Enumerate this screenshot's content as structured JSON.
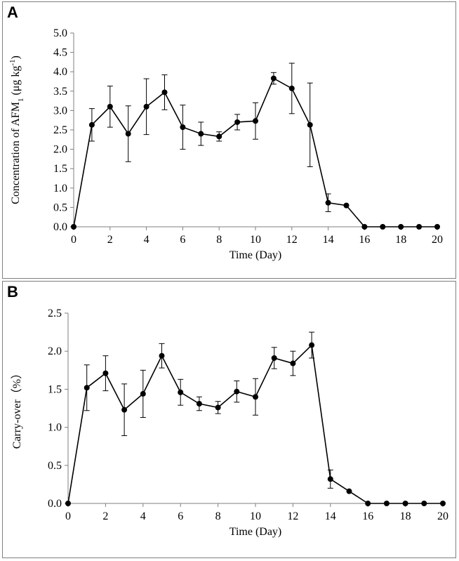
{
  "chart_data": [
    {
      "panel": "A",
      "type": "line",
      "xlabel": "Time (Day)",
      "ylabel": "Concentration of AFM",
      "ylabel_sub": "1",
      "ylabel_unit": " (μg kg",
      "ylabel_sup": "-1",
      "ylabel_close": ")",
      "xlim": [
        0,
        20
      ],
      "ylim": [
        0,
        5
      ],
      "xticks": [
        0,
        2,
        4,
        6,
        8,
        10,
        12,
        14,
        16,
        18,
        20
      ],
      "yticks": [
        0.0,
        0.5,
        1.0,
        1.5,
        2.0,
        2.5,
        3.0,
        3.5,
        4.0,
        4.5,
        5.0
      ],
      "ytick_labels": [
        "0.0",
        "0.5",
        "1.0",
        "1.5",
        "2.0",
        "2.5",
        "3.0",
        "3.5",
        "4.0",
        "4.5",
        "5.0"
      ],
      "x": [
        0,
        1,
        2,
        3,
        4,
        5,
        6,
        7,
        8,
        9,
        10,
        11,
        12,
        13,
        14,
        15,
        16,
        17,
        18,
        19,
        20
      ],
      "y": [
        0,
        2.63,
        3.1,
        2.4,
        3.1,
        3.47,
        2.57,
        2.4,
        2.33,
        2.7,
        2.73,
        3.83,
        3.57,
        2.63,
        0.62,
        0.55,
        0,
        0,
        0,
        0,
        0
      ],
      "err": [
        0,
        0.42,
        0.53,
        0.72,
        0.72,
        0.45,
        0.57,
        0.3,
        0.12,
        0.2,
        0.47,
        0.15,
        0.65,
        1.08,
        0.23,
        0,
        0,
        0,
        0,
        0,
        0
      ]
    },
    {
      "panel": "B",
      "type": "line",
      "xlabel": "Time (Day)",
      "ylabel": "Carry-over",
      "ylabel_unit": "（%）",
      "xlim": [
        0,
        20
      ],
      "ylim": [
        0,
        2.5
      ],
      "xticks": [
        0,
        2,
        4,
        6,
        8,
        10,
        12,
        14,
        16,
        18,
        20
      ],
      "yticks": [
        0.0,
        0.5,
        1.0,
        1.5,
        2.0,
        2.5
      ],
      "ytick_labels": [
        "0.0",
        "0.5",
        "1.0",
        "1.5",
        "2.0",
        "2.5"
      ],
      "x": [
        0,
        1,
        2,
        3,
        4,
        5,
        6,
        7,
        8,
        9,
        10,
        11,
        12,
        13,
        14,
        15,
        16,
        17,
        18,
        19,
        20
      ],
      "y": [
        0,
        1.52,
        1.71,
        1.23,
        1.44,
        1.94,
        1.46,
        1.31,
        1.26,
        1.47,
        1.4,
        1.91,
        1.84,
        2.08,
        0.32,
        0.16,
        0,
        0,
        0,
        0,
        0
      ],
      "err": [
        0,
        0.3,
        0.23,
        0.34,
        0.31,
        0.16,
        0.17,
        0.09,
        0.08,
        0.14,
        0.24,
        0.14,
        0.16,
        0.17,
        0.12,
        0,
        0,
        0,
        0,
        0,
        0
      ]
    }
  ],
  "panels": {
    "A": "A",
    "B": "B"
  }
}
